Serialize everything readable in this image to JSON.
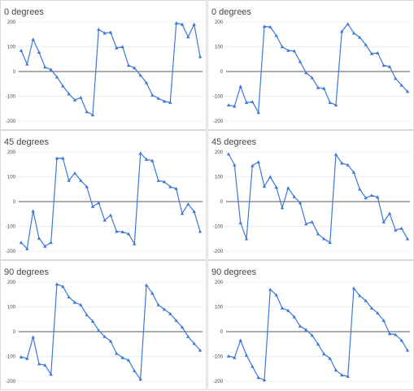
{
  "colors": {
    "series": "#3c78d8"
  },
  "chart_data": [
    {
      "type": "line",
      "title": "0 degrees",
      "ylim": [
        -200,
        200
      ],
      "yticks": [
        "200",
        "100",
        "0",
        "-100",
        "-200"
      ],
      "grid": true,
      "series": [
        {
          "values": [
            85,
            30,
            130,
            78,
            18,
            8,
            -22,
            -58,
            -90,
            -115,
            -105,
            -162,
            -175,
            170,
            155,
            158,
            95,
            100,
            25,
            15,
            -15,
            -45,
            -95,
            -108,
            -120,
            -125,
            195,
            190,
            140,
            190,
            60
          ]
        }
      ]
    },
    {
      "type": "line",
      "title": "0 degrees",
      "ylim": [
        -200,
        200
      ],
      "yticks": [
        "200",
        "100",
        "0",
        "-100",
        "-200"
      ],
      "grid": true,
      "series": [
        {
          "values": [
            -135,
            -140,
            -60,
            -125,
            -122,
            -165,
            182,
            180,
            145,
            100,
            85,
            83,
            40,
            -5,
            -25,
            -65,
            -68,
            -125,
            -135,
            162,
            192,
            155,
            138,
            108,
            72,
            75,
            25,
            20,
            -28,
            -55,
            -80
          ]
        }
      ]
    },
    {
      "type": "line",
      "title": "45 degrees",
      "ylim": [
        -200,
        200
      ],
      "yticks": [
        "200",
        "100",
        "0",
        "-100",
        "-200"
      ],
      "grid": true,
      "series": [
        {
          "values": [
            -165,
            -190,
            -38,
            -148,
            -180,
            -165,
            175,
            175,
            85,
            115,
            85,
            60,
            -20,
            -5,
            -75,
            -55,
            -120,
            -122,
            -130,
            -170,
            195,
            170,
            165,
            85,
            80,
            60,
            52,
            -48,
            -10,
            -40,
            -120
          ]
        }
      ]
    },
    {
      "type": "line",
      "title": "45 degrees",
      "ylim": [
        -200,
        200
      ],
      "yticks": [
        "200",
        "100",
        "0",
        "-100",
        "-200"
      ],
      "grid": true,
      "series": [
        {
          "values": [
            192,
            148,
            -85,
            -150,
            145,
            160,
            62,
            100,
            58,
            -25,
            55,
            20,
            -5,
            -90,
            -82,
            -130,
            -150,
            -165,
            190,
            155,
            148,
            118,
            50,
            15,
            25,
            18,
            -82,
            -48,
            -115,
            -108,
            -150
          ]
        }
      ]
    },
    {
      "type": "line",
      "title": "90 degrees",
      "ylim": [
        -200,
        200
      ],
      "yticks": [
        "200",
        "100",
        "0",
        "-100",
        "-200"
      ],
      "grid": true,
      "series": [
        {
          "values": [
            -102,
            -108,
            -22,
            -130,
            -135,
            -172,
            192,
            182,
            140,
            118,
            108,
            68,
            42,
            5,
            -20,
            -38,
            -88,
            -105,
            -115,
            -158,
            -192,
            188,
            155,
            108,
            90,
            72,
            45,
            18,
            -20,
            -48,
            -75
          ]
        }
      ]
    },
    {
      "type": "line",
      "title": "90 degrees",
      "ylim": [
        -200,
        200
      ],
      "yticks": [
        "200",
        "100",
        "0",
        "-100",
        "-200"
      ],
      "grid": true,
      "series": [
        {
          "values": [
            -98,
            -105,
            -35,
            -95,
            -140,
            -185,
            -195,
            170,
            148,
            95,
            85,
            60,
            22,
            8,
            -15,
            -50,
            -90,
            -108,
            -155,
            -175,
            -180,
            175,
            145,
            125,
            95,
            75,
            45,
            -8,
            -12,
            -35,
            -75
          ]
        }
      ]
    }
  ]
}
